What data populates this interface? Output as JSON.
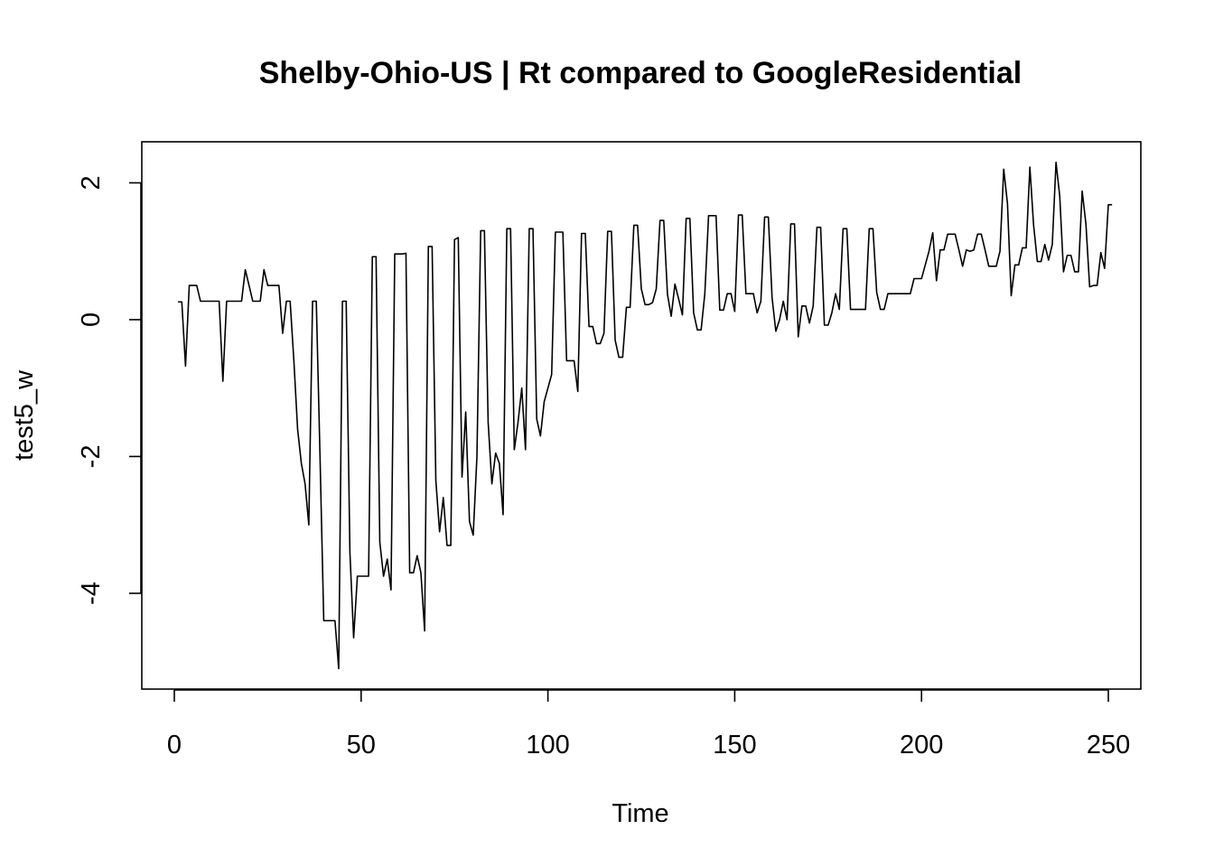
{
  "chart_data": {
    "type": "line",
    "title": "Shelby-Ohio-US | Rt compared to GoogleResidential",
    "xlabel": "Time",
    "ylabel": "test5_w",
    "xlim": [
      -8.7,
      258.7
    ],
    "ylim": [
      -5.4,
      2.6
    ],
    "x_ticks": [
      0,
      50,
      100,
      150,
      200,
      250
    ],
    "y_ticks": [
      -4,
      -2,
      0,
      2
    ],
    "grid": false,
    "legend": "none",
    "line_color": "#000000",
    "x_start": 1,
    "series": [
      {
        "values": [
          0.26,
          0.26,
          -0.68,
          0.5,
          0.5,
          0.5,
          0.27,
          0.27,
          0.27,
          0.27,
          0.27,
          0.27,
          -0.9,
          0.27,
          0.27,
          0.27,
          0.27,
          0.27,
          0.73,
          0.5,
          0.27,
          0.27,
          0.27,
          0.73,
          0.5,
          0.5,
          0.5,
          0.5,
          -0.2,
          0.27,
          0.27,
          -0.6,
          -1.6,
          -2.1,
          -2.4,
          -3.0,
          0.27,
          0.27,
          -2.0,
          -4.4,
          -4.4,
          -4.4,
          -4.4,
          -5.1,
          0.27,
          0.27,
          -3.4,
          -4.65,
          -3.75,
          -3.75,
          -3.75,
          -3.75,
          0.92,
          0.92,
          -3.25,
          -3.75,
          -3.5,
          -3.95,
          0.96,
          0.96,
          0.96,
          0.97,
          -3.7,
          -3.7,
          -3.45,
          -3.7,
          -4.55,
          1.07,
          1.07,
          -2.35,
          -3.1,
          -2.6,
          -3.3,
          -3.3,
          1.17,
          1.2,
          -2.3,
          -1.35,
          -2.95,
          -3.15,
          -2.0,
          1.3,
          1.3,
          -1.5,
          -2.4,
          -1.95,
          -2.1,
          -2.85,
          1.33,
          1.33,
          -1.9,
          -1.5,
          -1.0,
          -1.9,
          1.33,
          1.33,
          -1.45,
          -1.7,
          -1.2,
          -1.0,
          -0.8,
          1.28,
          1.28,
          1.28,
          -0.6,
          -0.6,
          -0.6,
          -1.05,
          1.26,
          1.26,
          -0.1,
          -0.1,
          -0.35,
          -0.35,
          -0.2,
          1.29,
          1.29,
          -0.3,
          -0.55,
          -0.55,
          0.18,
          0.18,
          1.38,
          1.38,
          0.45,
          0.22,
          0.22,
          0.25,
          0.45,
          1.45,
          1.45,
          0.37,
          0.05,
          0.52,
          0.3,
          0.07,
          1.48,
          1.48,
          0.1,
          -0.15,
          -0.15,
          0.38,
          1.52,
          1.52,
          1.52,
          0.14,
          0.14,
          0.38,
          0.38,
          0.12,
          1.53,
          1.53,
          0.38,
          0.38,
          0.38,
          0.1,
          0.27,
          1.5,
          1.5,
          0.32,
          -0.17,
          0.0,
          0.27,
          0.0,
          1.4,
          1.4,
          -0.25,
          0.2,
          0.2,
          -0.05,
          0.2,
          1.35,
          1.35,
          -0.08,
          -0.08,
          0.1,
          0.38,
          0.15,
          1.33,
          1.33,
          0.15,
          0.15,
          0.15,
          0.15,
          0.15,
          1.33,
          1.33,
          0.4,
          0.15,
          0.15,
          0.38,
          0.38,
          0.38,
          0.38,
          0.38,
          0.38,
          0.38,
          0.6,
          0.6,
          0.6,
          0.8,
          1.0,
          1.27,
          0.57,
          1.02,
          1.02,
          1.25,
          1.25,
          1.25,
          1.02,
          0.78,
          1.02,
          1.0,
          1.02,
          1.25,
          1.25,
          1.02,
          0.78,
          0.78,
          0.78,
          1.0,
          2.2,
          1.7,
          0.35,
          0.8,
          0.8,
          1.05,
          1.05,
          2.23,
          1.38,
          0.85,
          0.85,
          1.1,
          0.87,
          1.1,
          2.3,
          1.8,
          0.7,
          0.94,
          0.94,
          0.7,
          0.7,
          1.88,
          1.4,
          0.48,
          0.5,
          0.5,
          0.98,
          0.75,
          1.68,
          1.68
        ]
      }
    ]
  }
}
